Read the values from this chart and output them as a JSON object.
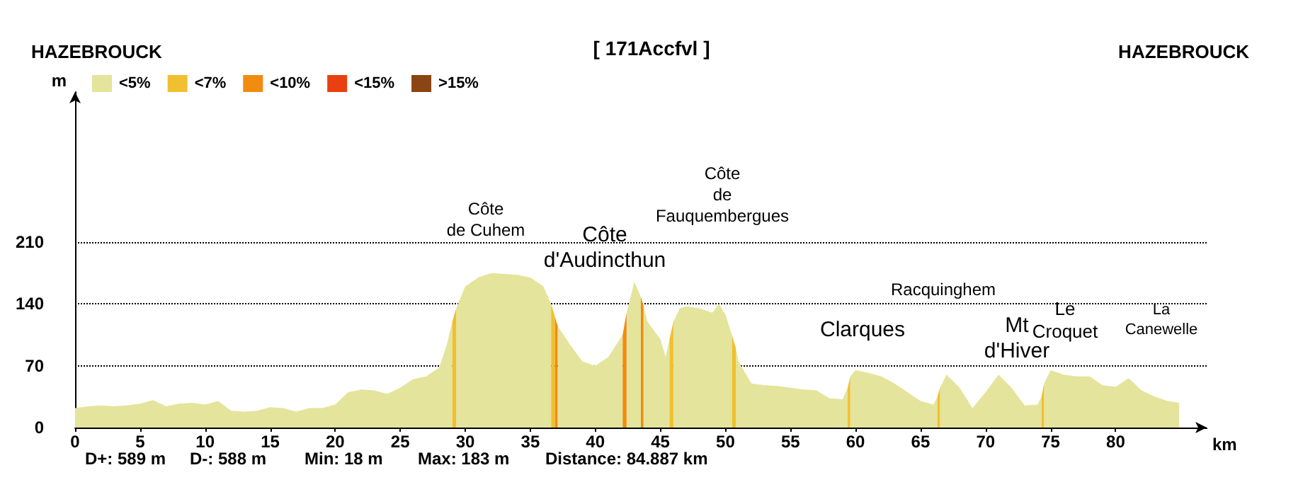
{
  "chart_data": {
    "type": "area",
    "title": "[ 171Accfvl ]",
    "xlabel": "km",
    "ylabel": "m",
    "xlim": [
      0,
      87
    ],
    "xticks": [
      0,
      5,
      10,
      15,
      20,
      25,
      30,
      35,
      40,
      45,
      50,
      55,
      60,
      65,
      70,
      75,
      80
    ],
    "ylim": [
      0,
      380
    ],
    "yticks": [
      0,
      70,
      140,
      210
    ],
    "grid": "y",
    "legend": "top left",
    "series": [
      {
        "name": "<5%",
        "color": "#e4e49c",
        "x": [
          0,
          1,
          2,
          3,
          4,
          5,
          6,
          7,
          8,
          9,
          10,
          11,
          12,
          13,
          14,
          15,
          16,
          17,
          18,
          19,
          20,
          21,
          22,
          23,
          24,
          25,
          26,
          27,
          28,
          28.6,
          29.0,
          29.15,
          29.3,
          30,
          31,
          32,
          33,
          34,
          35,
          36,
          36.6,
          36.75,
          36.9,
          37.0,
          37.1,
          38,
          39,
          40,
          41,
          42.1,
          42.25,
          42.4,
          43,
          43.5,
          43.6,
          43.7,
          44,
          45,
          45.4,
          45.7,
          45.85,
          46.0,
          46.5,
          47,
          48,
          49,
          49.5,
          50,
          50.5,
          50.65,
          50.8,
          51,
          52,
          53,
          54,
          55,
          56,
          57,
          58,
          59,
          59.4,
          59.5,
          59.6,
          60,
          61,
          62,
          63,
          64,
          65,
          66,
          66.3,
          66.4,
          66.5,
          67,
          68,
          69,
          70,
          71,
          72,
          73,
          74,
          74.3,
          74.4,
          74.5,
          75,
          76,
          77,
          78,
          79,
          80,
          81,
          82,
          83,
          84,
          84.887
        ],
        "values": [
          22,
          24,
          25,
          24,
          25,
          27,
          31,
          24,
          27,
          28,
          26,
          30,
          19,
          18,
          19,
          23,
          22,
          18,
          22,
          22,
          26,
          40,
          43,
          42,
          38,
          45,
          55,
          58,
          68,
          95,
          120,
          null,
          135,
          160,
          170,
          175,
          174,
          173,
          170,
          160,
          140,
          null,
          125,
          null,
          115,
          95,
          75,
          70,
          80,
          105,
          null,
          130,
          165,
          148,
          null,
          138,
          120,
          100,
          80,
          100,
          null,
          120,
          135,
          137,
          135,
          130,
          140,
          128,
          105,
          null,
          90,
          75,
          50,
          48,
          47,
          45,
          43,
          42,
          33,
          32,
          45,
          null,
          58,
          65,
          62,
          58,
          50,
          40,
          30,
          26,
          35,
          null,
          45,
          60,
          45,
          22,
          40,
          60,
          45,
          25,
          26,
          35,
          null,
          50,
          65,
          60,
          58,
          58,
          48,
          46,
          56,
          42,
          35,
          30,
          28
        ]
      },
      {
        "name": "<7%",
        "color": "#f0c030",
        "x": [
          29.0,
          29.3,
          29.4,
          36.6,
          36.9,
          37.0,
          45.7,
          46.0,
          46.1,
          50.5,
          50.8,
          50.9,
          59.4,
          59.6,
          59.7,
          66.3,
          66.5,
          66.6,
          74.3,
          74.5
        ],
        "values": [
          120,
          135,
          null,
          140,
          125,
          null,
          100,
          120,
          null,
          105,
          90,
          null,
          45,
          58,
          null,
          35,
          45,
          null,
          35,
          50
        ]
      },
      {
        "name": "<10%",
        "color": "#f08c10",
        "x": [
          36.9,
          37.1,
          37.2,
          42.1,
          42.4,
          42.5,
          43.5,
          43.7
        ],
        "values": [
          125,
          115,
          null,
          105,
          130,
          null,
          148,
          138
        ]
      },
      {
        "name": "<15%",
        "color": "#e84010"
      },
      {
        "name": ">15%",
        "color": "#8b4513"
      }
    ],
    "annotations": [
      "HAZEBROUCK",
      "HAZEBROUCK",
      "D+: 589 m",
      "D-: 588 m",
      "Min: 18 m",
      "Max: 183 m",
      "Distance: 84.887 km",
      "Côte\nde Cuhem",
      "Côte\nd'Audincthun",
      "Côte\nde\nFauquembergues",
      "Clarques",
      "Racquinghem",
      "Mt\nd'Hiver",
      "Le\nCroquet",
      "La\nCanewelle"
    ]
  }
}
